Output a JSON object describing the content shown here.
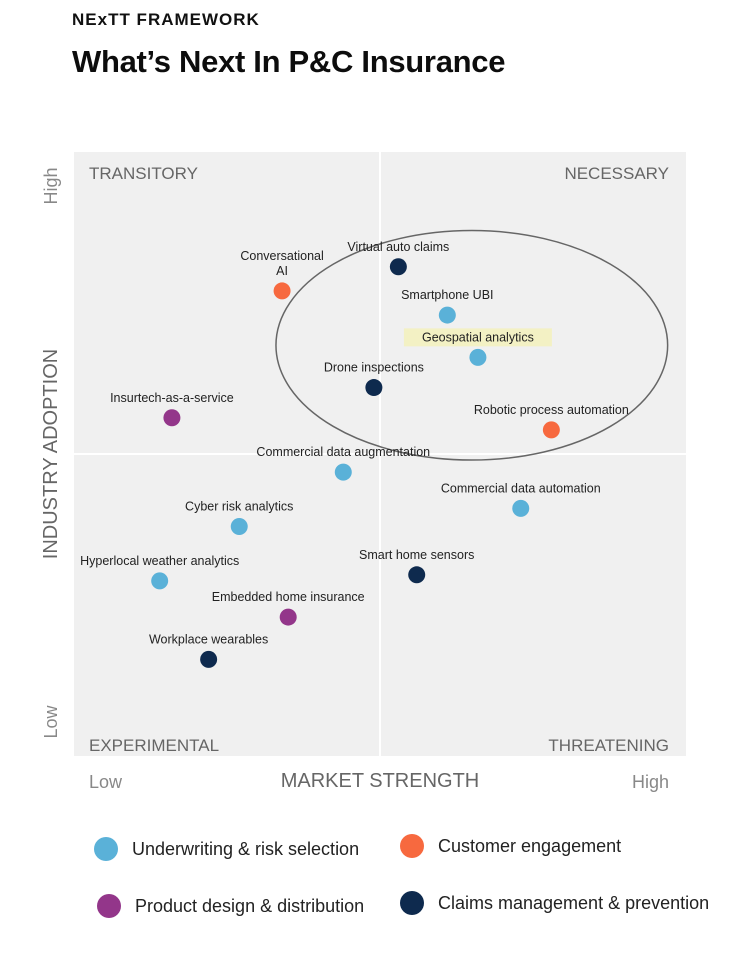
{
  "header": {
    "eyebrow": "NExTT FRAMEWORK",
    "title": "What’s Next In P&C Insurance"
  },
  "chart_data": {
    "type": "scatter",
    "title": "What’s Next In P&C Insurance",
    "xlabel": "MARKET STRENGTH",
    "ylabel": "INDUSTRY ADOPTION",
    "x_ticks": {
      "low": "Low",
      "high": "High"
    },
    "y_ticks": {
      "low": "Low",
      "high": "High"
    },
    "xlim": [
      0,
      100
    ],
    "ylim": [
      0,
      100
    ],
    "quadrants": {
      "top_left": "TRANSITORY",
      "top_right": "NECESSARY",
      "bottom_left": "EXPERIMENTAL",
      "bottom_right": "THREATENING"
    },
    "categories": {
      "underwriting": {
        "name": "Underwriting & risk selection",
        "color": "#5AB1D8"
      },
      "engagement": {
        "name": "Customer engagement",
        "color": "#F7693F"
      },
      "product": {
        "name": "Product design & distribution",
        "color": "#93368A"
      },
      "claims": {
        "name": "Claims management & prevention",
        "color": "#0E2A4E"
      }
    },
    "points": [
      {
        "label": "Virtual auto claims",
        "x": 53,
        "y": 81,
        "category": "claims"
      },
      {
        "label": "Conversational\nAI",
        "x": 34,
        "y": 77,
        "category": "engagement"
      },
      {
        "label": "Smartphone UBI",
        "x": 61,
        "y": 73,
        "category": "underwriting"
      },
      {
        "label": "Geospatial analytics",
        "x": 66,
        "y": 66,
        "category": "underwriting",
        "highlight": true
      },
      {
        "label": "Drone inspections",
        "x": 49,
        "y": 61,
        "category": "claims"
      },
      {
        "label": "Insurtech-as-a-service",
        "x": 16,
        "y": 56,
        "category": "product"
      },
      {
        "label": "Robotic process automation",
        "x": 78,
        "y": 54,
        "category": "engagement"
      },
      {
        "label": "Commercial data augmentation",
        "x": 44,
        "y": 47,
        "category": "underwriting"
      },
      {
        "label": "Commercial data automation",
        "x": 73,
        "y": 41,
        "category": "underwriting"
      },
      {
        "label": "Cyber risk analytics",
        "x": 27,
        "y": 38,
        "category": "underwriting"
      },
      {
        "label": "Hyperlocal weather analytics",
        "x": 14,
        "y": 29,
        "category": "underwriting"
      },
      {
        "label": "Smart home sensors",
        "x": 56,
        "y": 30,
        "category": "claims"
      },
      {
        "label": "Embedded home insurance",
        "x": 35,
        "y": 23,
        "category": "product"
      },
      {
        "label": "Workplace wearables",
        "x": 22,
        "y": 16,
        "category": "claims"
      }
    ],
    "ellipse": {
      "cx": 65,
      "cy": 68,
      "rx": 32,
      "ry": 19
    }
  },
  "legend": [
    {
      "key": "underwriting",
      "label": "Underwriting & risk selection",
      "color": "#5AB1D8"
    },
    {
      "key": "engagement",
      "label": "Customer engagement",
      "color": "#F7693F"
    },
    {
      "key": "product",
      "label": "Product design & distribution",
      "color": "#93368A"
    },
    {
      "key": "claims",
      "label": "Claims management & prevention",
      "color": "#0E2A4E"
    }
  ]
}
